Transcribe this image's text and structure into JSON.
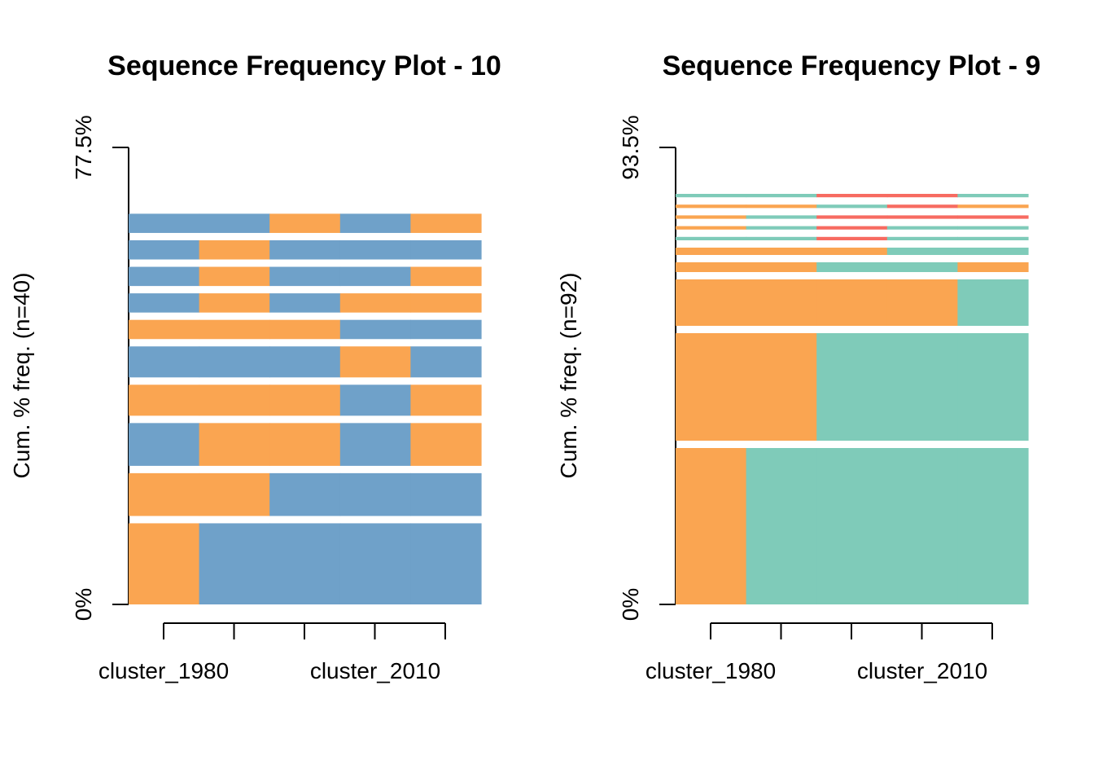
{
  "chart_data": [
    {
      "type": "bar",
      "subtype": "sequence-frequency",
      "title": "Sequence Frequency Plot -  10",
      "ylabel": "Cum. % freq. (n=40)",
      "ytick_labels": [
        "0%",
        "77.5%"
      ],
      "ylim": [
        0,
        77.5
      ],
      "x": [
        "1",
        "2",
        "3",
        "4",
        "5"
      ],
      "xtick_labels": [
        "cluster_1980",
        "cluster_2010"
      ],
      "state_colors": {
        "A": "#6fa1c9",
        "B": "#faa551"
      },
      "sequences": [
        {
          "states": [
            "B",
            "A",
            "A",
            "A",
            "A"
          ],
          "freq": 15
        },
        {
          "states": [
            "B",
            "B",
            "A",
            "A",
            "A"
          ],
          "freq": 8.5
        },
        {
          "states": [
            "A",
            "B",
            "B",
            "A",
            "B"
          ],
          "freq": 8.5
        },
        {
          "states": [
            "B",
            "B",
            "B",
            "A",
            "B"
          ],
          "freq": 6.5
        },
        {
          "states": [
            "A",
            "A",
            "A",
            "B",
            "A"
          ],
          "freq": 6.5
        },
        {
          "states": [
            "B",
            "B",
            "B",
            "A",
            "A"
          ],
          "freq": 4.5
        },
        {
          "states": [
            "A",
            "B",
            "A",
            "B",
            "B"
          ],
          "freq": 4.5
        },
        {
          "states": [
            "A",
            "B",
            "A",
            "A",
            "B"
          ],
          "freq": 4.5
        },
        {
          "states": [
            "A",
            "B",
            "A",
            "A",
            "A"
          ],
          "freq": 4.5
        },
        {
          "states": [
            "A",
            "A",
            "B",
            "A",
            "B"
          ],
          "freq": 4.5
        }
      ]
    },
    {
      "type": "bar",
      "subtype": "sequence-frequency",
      "title": "Sequence Frequency Plot -  9",
      "ylabel": "Cum. % freq. (n=92)",
      "ytick_labels": [
        "0%",
        "93.5%"
      ],
      "ylim": [
        0,
        93.5
      ],
      "x": [
        "1",
        "2",
        "3",
        "4",
        "5"
      ],
      "xtick_labels": [
        "cluster_1980",
        "cluster_2010"
      ],
      "state_colors": {
        "B": "#faa551",
        "C": "#7fcbb9",
        "D": "#f76b61"
      },
      "sequences": [
        {
          "states": [
            "B",
            "C",
            "C",
            "C",
            "C"
          ],
          "freq": 33.5
        },
        {
          "states": [
            "B",
            "B",
            "C",
            "C",
            "C"
          ],
          "freq": 23.5
        },
        {
          "states": [
            "B",
            "B",
            "B",
            "B",
            "C"
          ],
          "freq": 11
        },
        {
          "states": [
            "B",
            "B",
            "C",
            "C",
            "B"
          ],
          "freq": 3.5
        },
        {
          "states": [
            "B",
            "B",
            "B",
            "C",
            "C"
          ],
          "freq": 3
        },
        {
          "states": [
            "C",
            "C",
            "D",
            "C",
            "C"
          ],
          "freq": 2.2
        },
        {
          "states": [
            "B",
            "C",
            "D",
            "C",
            "C"
          ],
          "freq": 2.2
        },
        {
          "states": [
            "B",
            "C",
            "D",
            "D",
            "D"
          ],
          "freq": 2.2
        },
        {
          "states": [
            "B",
            "B",
            "C",
            "D",
            "B"
          ],
          "freq": 2.2
        },
        {
          "states": [
            "C",
            "C",
            "D",
            "D",
            "C"
          ],
          "freq": 2.2
        }
      ]
    }
  ]
}
